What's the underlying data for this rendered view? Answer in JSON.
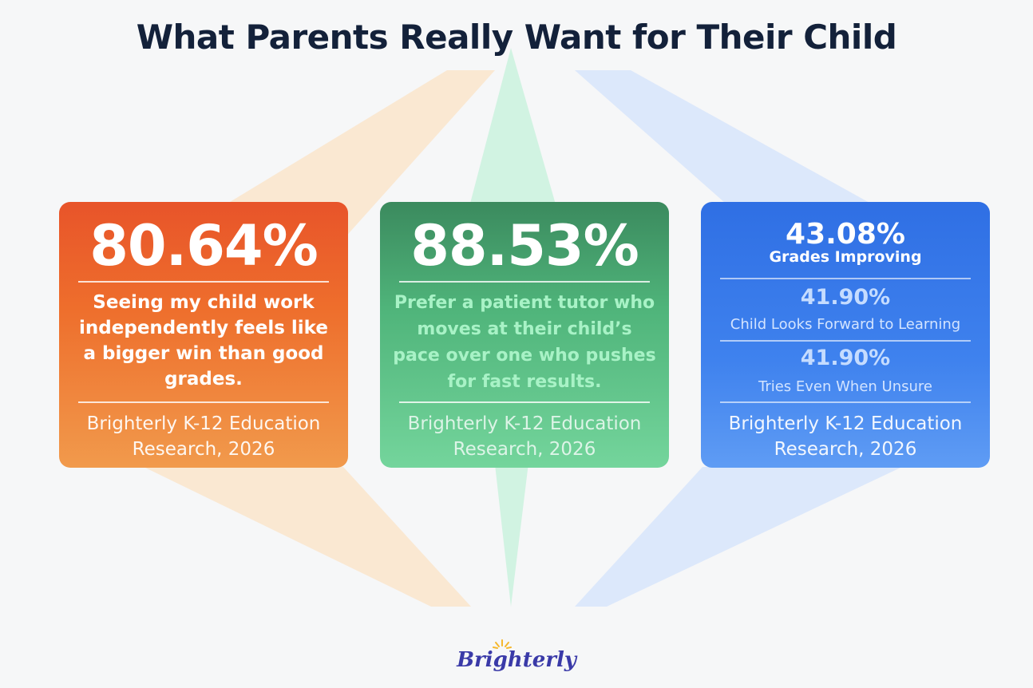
{
  "title": "What Parents Really Want for Their Child",
  "cards": [
    {
      "stat": "80.64%",
      "text": "Seeing my child work independently feels like a bigger win than good grades.",
      "source_line1": "Brighterly K-12 Education",
      "source_line2": "Research, 2026",
      "color": "#ea5a2a"
    },
    {
      "stat": "88.53%",
      "text": "Prefer a patient tutor who moves at their child’s pace over one who pushes for fast results.",
      "source_line1": "Brighterly K-12 Education",
      "source_line2": "Research, 2026",
      "color": "#4aa872"
    },
    {
      "items": [
        {
          "value": "43.08%",
          "label": "Grades Improving"
        },
        {
          "value": "41.90%",
          "label": "Child Looks Forward to Learning"
        },
        {
          "value": "41.90%",
          "label": "Tries Even When Unsure"
        }
      ],
      "source_line1": "Brighterly K-12 Education",
      "source_line2": "Research, 2026",
      "color": "#3578ea"
    }
  ],
  "logo": {
    "text": "Brighterly",
    "color": "#3a3aa8",
    "accent": "#f5b82e"
  }
}
